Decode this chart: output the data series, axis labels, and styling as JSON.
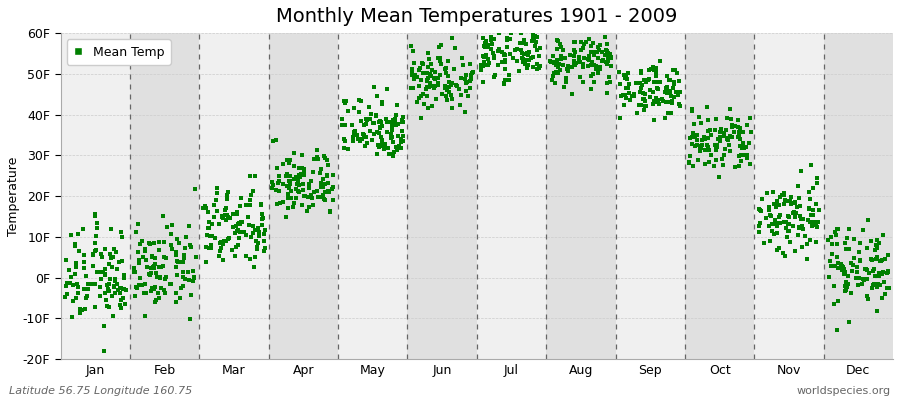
{
  "title": "Monthly Mean Temperatures 1901 - 2009",
  "ylabel": "Temperature",
  "bottom_left": "Latitude 56.75 Longitude 160.75",
  "bottom_right": "worldspecies.org",
  "legend_label": "Mean Temp",
  "ylim": [
    -20,
    60
  ],
  "yticks": [
    -20,
    -10,
    0,
    10,
    20,
    30,
    40,
    50,
    60
  ],
  "ytick_labels": [
    "-20F",
    "-10F",
    "0F",
    "10F",
    "20F",
    "30F",
    "40F",
    "50F",
    "60F"
  ],
  "months": [
    "Jan",
    "Feb",
    "Mar",
    "Apr",
    "May",
    "Jun",
    "Jul",
    "Aug",
    "Sep",
    "Oct",
    "Nov",
    "Dec"
  ],
  "monthly_means_F": [
    0,
    2,
    12,
    23,
    37,
    49,
    55,
    53,
    46,
    33,
    15,
    3
  ],
  "monthly_stds_F": [
    6,
    5,
    5,
    4,
    4,
    4,
    3,
    3,
    3,
    4,
    5,
    5
  ],
  "dot_color": "#008000",
  "dot_size": 6,
  "background_color": "#ffffff",
  "band_color_light": "#f0f0f0",
  "band_color_dark": "#e0e0e0",
  "title_fontsize": 14,
  "axis_fontsize": 9,
  "tick_fontsize": 9,
  "n_years": 109,
  "legend_fontsize": 9
}
